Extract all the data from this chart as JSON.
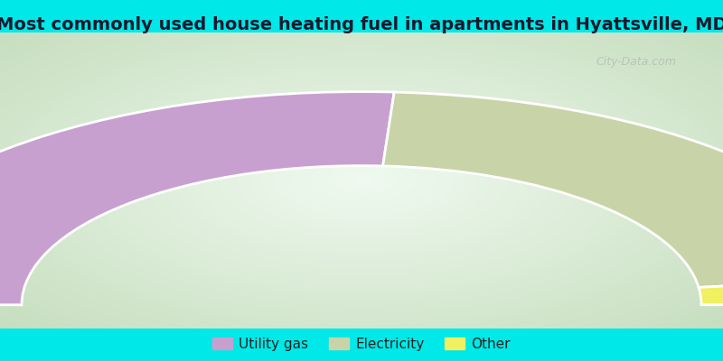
{
  "title": "Most commonly used house heating fuel in apartments in Hyattsville, MD",
  "title_fontsize": 14,
  "bg_cyan": "#00e8e8",
  "bg_chart_center": "#f5faf5",
  "bg_chart_edge_green": "#c8dfc0",
  "segments": [
    {
      "label": "Utility gas",
      "value": 52,
      "color": "#c8a0d0"
    },
    {
      "label": "Electricity",
      "value": 44,
      "color": "#c8d4a8"
    },
    {
      "label": "Other",
      "value": 4,
      "color": "#f0f060"
    }
  ],
  "legend_colors": [
    "#c8a0d0",
    "#c8d4a8",
    "#f0f060"
  ],
  "legend_labels": [
    "Utility gas",
    "Electricity",
    "Other"
  ],
  "watermark": "City-Data.com",
  "fig_width": 8.0,
  "fig_height": 4.0,
  "dpi": 100
}
